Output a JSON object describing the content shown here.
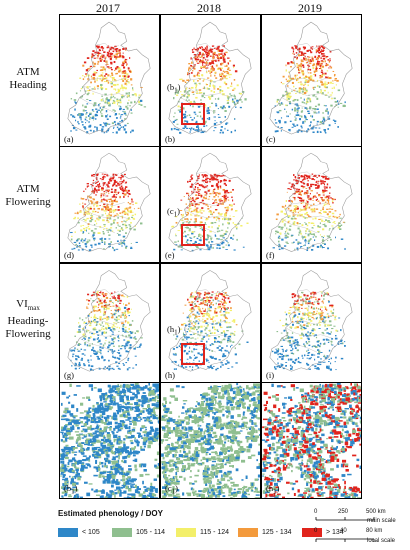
{
  "years": [
    "2017",
    "2018",
    "2019"
  ],
  "rows": [
    {
      "line1": "ATM",
      "line2": "Heading",
      "line3": ""
    },
    {
      "line1": "ATM",
      "line2": "Flowering",
      "line3": ""
    },
    {
      "line1": "VI",
      "sub": "max",
      "line2": "Heading-",
      "line3": "Flowering"
    }
  ],
  "panel_labels": [
    "(a)",
    "(b)",
    "(c)",
    "(d)",
    "(e)",
    "(f)",
    "(g)",
    "(h)",
    "(i)"
  ],
  "zoom_labels": {
    "b": "b",
    "c": "c",
    "h": "h",
    "sub": "1"
  },
  "legend": {
    "title": "Estimated phenology / DOY",
    "items": [
      {
        "label": "< 105",
        "color": "#2e87c8"
      },
      {
        "label": "105 - 114",
        "color": "#8fbf8f"
      },
      {
        "label": "115 - 124",
        "color": "#f3ef6a"
      },
      {
        "label": "125 - 134",
        "color": "#f39a3c"
      },
      {
        "label": "> 134",
        "color": "#e0241c"
      }
    ]
  },
  "scale": {
    "main_ticks": [
      "0",
      "250",
      "500 km"
    ],
    "main_label": "main scale",
    "local_ticks": [
      "0",
      "40",
      "80 km"
    ],
    "local_label": "local scale"
  }
}
